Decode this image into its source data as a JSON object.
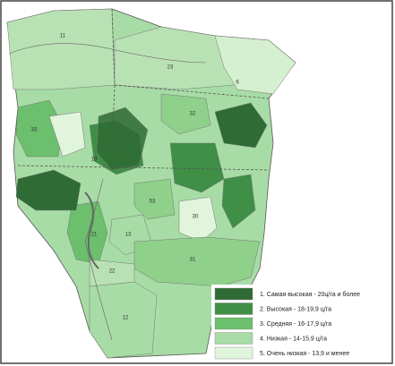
{
  "map": {
    "regions": [
      {
        "label": "11",
        "color": "#b9e2b4"
      },
      {
        "label": "23",
        "color": "#b9e2b4"
      },
      {
        "label": "6",
        "color": "#d5f0d0"
      },
      {
        "label": "33",
        "color": "#6cbf6c"
      },
      {
        "label": "32",
        "color": "#8fd08b"
      },
      {
        "label": "19",
        "color": "#3f8f46"
      },
      {
        "label": "21",
        "color": "#6cbf6c"
      },
      {
        "label": "13",
        "color": "#a8dca6"
      },
      {
        "label": "30",
        "color": "#e0f5dc"
      },
      {
        "label": "31",
        "color": "#8fd08b"
      },
      {
        "label": "12",
        "color": "#a8dca6"
      },
      {
        "label": "22",
        "color": "#b9e2b4"
      },
      {
        "label": "53",
        "color": "#8fd08b"
      }
    ],
    "legend": [
      {
        "label": "1. Самая высокая - 20ц/га и более",
        "color": "#2e6b35"
      },
      {
        "label": "2. Высокая - 18-19,9 ц/га",
        "color": "#3f8f46"
      },
      {
        "label": "3. Средняя - 16-17,9 ц/га",
        "color": "#6cbf6c"
      },
      {
        "label": "4. Низкая - 14-15,9 ц/га",
        "color": "#a8dca6"
      },
      {
        "label": "5. Очень низкая - 13,9 и менее",
        "color": "#e0f5dc"
      }
    ]
  }
}
